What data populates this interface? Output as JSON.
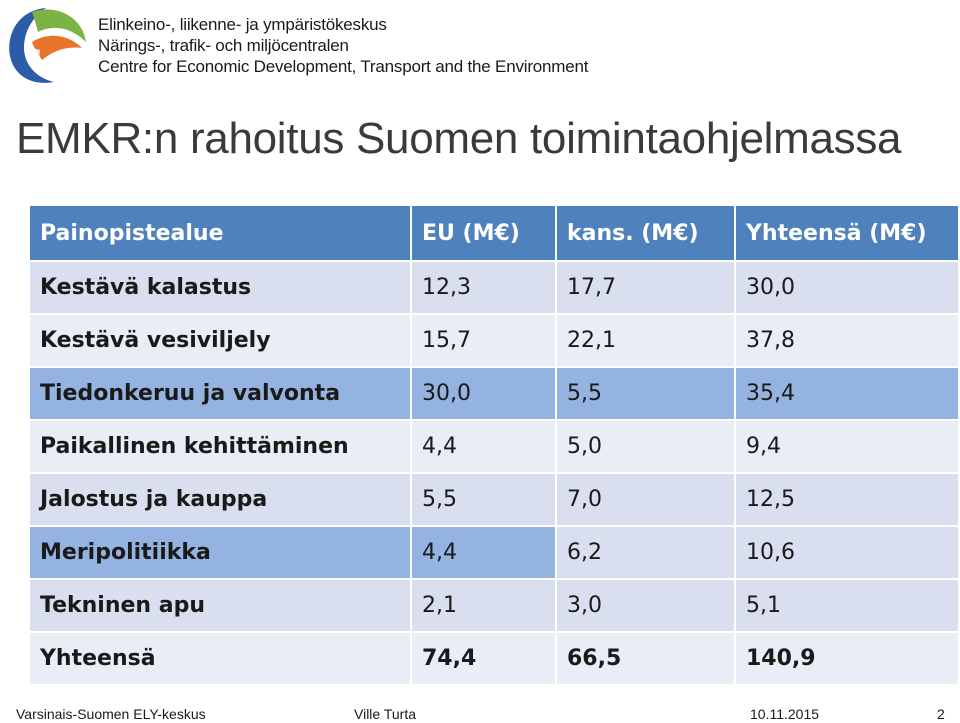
{
  "organization": {
    "lines": [
      "Elinkeino-, liikenne- ja ympäristökeskus",
      "Närings-, trafik- och miljöcentralen",
      "Centre for Economic Development, Transport and the Environment"
    ],
    "logo_colors": {
      "blue": "#2b5ca8",
      "green": "#7cb342",
      "orange": "#e8742c"
    }
  },
  "slide": {
    "title": "EMKR:n rahoitus Suomen toimintaohjelmassa"
  },
  "table": {
    "headers": [
      "Painopistealue",
      "EU (M€)",
      "kans. (M€)",
      "Yhteensä (M€)"
    ],
    "rows": [
      [
        "Kestävä kalastus",
        "12,3",
        "17,7",
        "30,0"
      ],
      [
        "Kestävä vesiviljely",
        "15,7",
        "22,1",
        "37,8"
      ],
      [
        "Tiedonkeruu ja valvonta",
        "30,0",
        "5,5",
        "35,4"
      ],
      [
        "Paikallinen kehittäminen",
        "4,4",
        "5,0",
        "9,4"
      ],
      [
        "Jalostus ja kauppa",
        "5,5",
        "7,0",
        "12,5"
      ],
      [
        "Meripolitiikka",
        "4,4",
        "6,2",
        "10,6"
      ],
      [
        "Tekninen apu",
        "2,1",
        "3,0",
        "5,1"
      ],
      [
        "Yhteensä",
        "74,4",
        "66,5",
        "140,9"
      ]
    ]
  },
  "footer": {
    "organization": "Varsinais-Suomen ELY-keskus",
    "author": "Ville Turta",
    "date": "10.11.2015",
    "page_number": "2"
  }
}
